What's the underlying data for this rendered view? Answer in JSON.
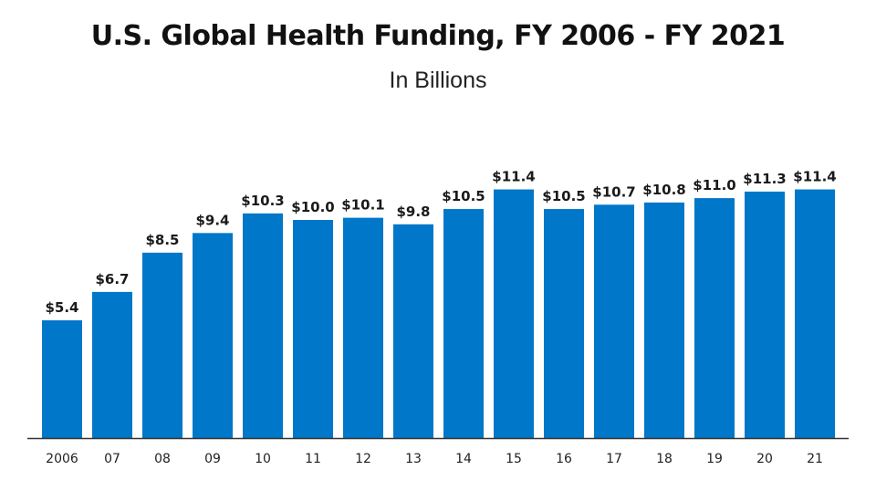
{
  "chart_data": {
    "type": "bar",
    "title": "U.S. Global Health Funding, FY 2006 - FY 2021",
    "subtitle": "In Billions",
    "xlabel": "",
    "ylabel": "",
    "categories": [
      "2006",
      "07",
      "08",
      "09",
      "10",
      "11",
      "12",
      "13",
      "14",
      "15",
      "16",
      "17",
      "18",
      "19",
      "20",
      "21"
    ],
    "values": [
      5.4,
      6.7,
      8.5,
      9.4,
      10.3,
      10.0,
      10.1,
      9.8,
      10.5,
      11.4,
      10.5,
      10.7,
      10.8,
      11.0,
      11.3,
      11.4
    ],
    "data_labels": [
      "$5.4",
      "$6.7",
      "$8.5",
      "$9.4",
      "$10.3",
      "$10.0",
      "$10.1",
      "$9.8",
      "$10.5",
      "$11.4",
      "$10.5",
      "$10.7",
      "$10.8",
      "$11.0",
      "$11.3",
      "$11.4"
    ],
    "ylim": [
      0,
      12
    ],
    "grid": false,
    "legend": "none",
    "bar_color": "#0077c8",
    "axis_color": "#333333"
  }
}
